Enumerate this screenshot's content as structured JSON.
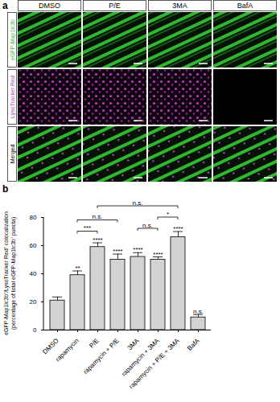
{
  "figure": {
    "panel_a": {
      "label": "a",
      "columns": [
        "DMSO",
        "P/E",
        "3MA",
        "BafA"
      ],
      "rows": [
        "eGFP-Map1lc3b",
        "LysoTracker Red",
        "Merged"
      ]
    },
    "panel_b_label": "b"
  },
  "chart_data": {
    "type": "bar",
    "y_label": [
      "eGFP-Map1lc3b⁺/LysoTracker Red⁺ colocalization",
      "(percentage of total eGFP-Map1lc3b⁺ puncta)"
    ],
    "categories": [
      "DMSO",
      "rapamycin",
      "P/E",
      "rapamycin + P/E",
      "3MA",
      "rapamycin + 3MA",
      "rapamycin + P/E + 3MA",
      "BafA"
    ],
    "values": [
      21,
      39,
      59,
      50,
      52,
      50,
      66,
      9
    ],
    "errors": [
      2.5,
      3,
      3,
      4,
      3,
      2,
      4,
      2
    ],
    "significance": [
      "",
      "**",
      "****",
      "****",
      "****",
      "****",
      "****",
      "n.s."
    ],
    "comparisons": [
      {
        "from": "rapamycin",
        "to": "P/E",
        "label": "***",
        "y": 70
      },
      {
        "from": "rapamycin",
        "to": "rapamycin + P/E",
        "label": "n.s.",
        "y": 78
      },
      {
        "from": "3MA",
        "to": "rapamycin + 3MA",
        "label": "n.s.",
        "y": 72
      },
      {
        "from": "rapamycin + 3MA",
        "to": "rapamycin + P/E + 3MA",
        "label": "*",
        "y": 80
      },
      {
        "from": "P/E",
        "to": "rapamycin + P/E + 3MA",
        "label": "n.s.",
        "y": 88
      }
    ],
    "color": "#d3d3d3",
    "ylim": [
      0,
      80
    ],
    "yticks": [
      0,
      20,
      40,
      60,
      80
    ]
  }
}
